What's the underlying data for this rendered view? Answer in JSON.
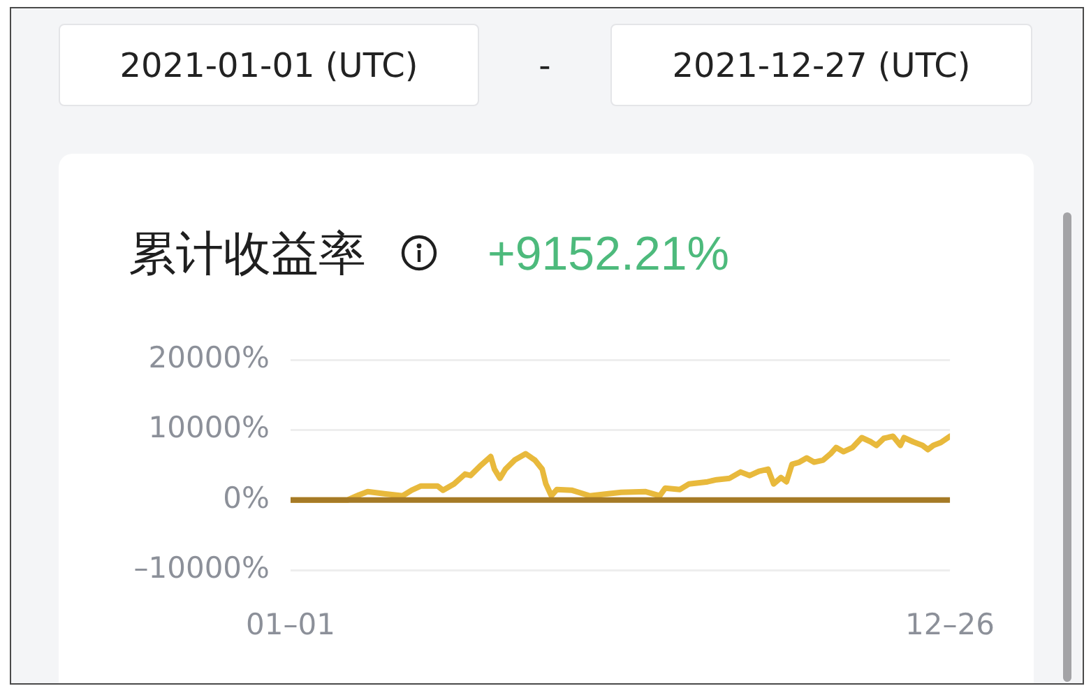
{
  "chart_data": {
    "type": "line",
    "title": "累计收益率",
    "subtitle": "+9152.21%",
    "annotations": [
      "2021-01-01 (UTC)",
      "-",
      "2021-12-27 (UTC)"
    ],
    "xlim": [
      "2021-01-01",
      "2021-12-26"
    ],
    "xticks": [
      {
        "value": "2021-01-01",
        "label": "01–01"
      },
      {
        "value": "2021-12-26",
        "label": "12–26"
      }
    ],
    "ylim": [
      -10000,
      20000
    ],
    "yticks": [
      {
        "value": -10000,
        "label": "–10000%"
      },
      {
        "value": 0,
        "label": "0%"
      },
      {
        "value": 10000,
        "label": "10000%"
      },
      {
        "value": 20000,
        "label": "20000%"
      }
    ],
    "grid": "y",
    "legend": false,
    "marker": "none",
    "line_style": "solid",
    "series": [
      {
        "color": "#e8b93c",
        "x": [
          "2021-01-01",
          "2021-02-01",
          "2021-02-07",
          "2021-02-12",
          "2021-02-21",
          "2021-03-03",
          "2021-03-08",
          "2021-03-13",
          "2021-03-22",
          "2021-03-25",
          "2021-03-31",
          "2021-04-06",
          "2021-04-09",
          "2021-04-14",
          "2021-04-20",
          "2021-04-22",
          "2021-04-25",
          "2021-04-28",
          "2021-05-03",
          "2021-05-09",
          "2021-05-14",
          "2021-05-18",
          "2021-05-20",
          "2021-05-23",
          "2021-05-26",
          "2021-06-03",
          "2021-06-13",
          "2021-06-23",
          "2021-06-30",
          "2021-07-13",
          "2021-07-21",
          "2021-07-24",
          "2021-08-01",
          "2021-08-06",
          "2021-08-16",
          "2021-08-21",
          "2021-08-28",
          "2021-09-03",
          "2021-09-08",
          "2021-09-13",
          "2021-09-18",
          "2021-09-21",
          "2021-09-25",
          "2021-09-28",
          "2021-10-01",
          "2021-10-05",
          "2021-10-09",
          "2021-10-13",
          "2021-10-18",
          "2021-10-22",
          "2021-10-25",
          "2021-10-29",
          "2021-11-03",
          "2021-11-08",
          "2021-11-13",
          "2021-11-16",
          "2021-11-20",
          "2021-11-25",
          "2021-11-29",
          "2021-12-01",
          "2021-12-06",
          "2021-12-11",
          "2021-12-14",
          "2021-12-17",
          "2021-12-21",
          "2021-12-26"
        ],
        "values": [
          0,
          0,
          700,
          1200,
          900,
          600,
          1400,
          2000,
          2000,
          1400,
          2300,
          3700,
          3500,
          4800,
          6200,
          4400,
          3100,
          4400,
          5700,
          6600,
          5700,
          4400,
          2300,
          600,
          1500,
          1400,
          600,
          900,
          1100,
          1200,
          600,
          1700,
          1500,
          2300,
          2600,
          2900,
          3100,
          4000,
          3500,
          4100,
          4400,
          2300,
          3200,
          2600,
          5100,
          5400,
          6000,
          5400,
          5700,
          6600,
          7500,
          6900,
          7500,
          8900,
          8300,
          7800,
          8800,
          9100,
          7800,
          8900,
          8300,
          7800,
          7200,
          7800,
          8200,
          9100
        ]
      },
      {
        "color": "#a57a26",
        "x": [
          "2021-01-01",
          "2021-12-26"
        ],
        "values": [
          0,
          0
        ]
      }
    ]
  }
}
